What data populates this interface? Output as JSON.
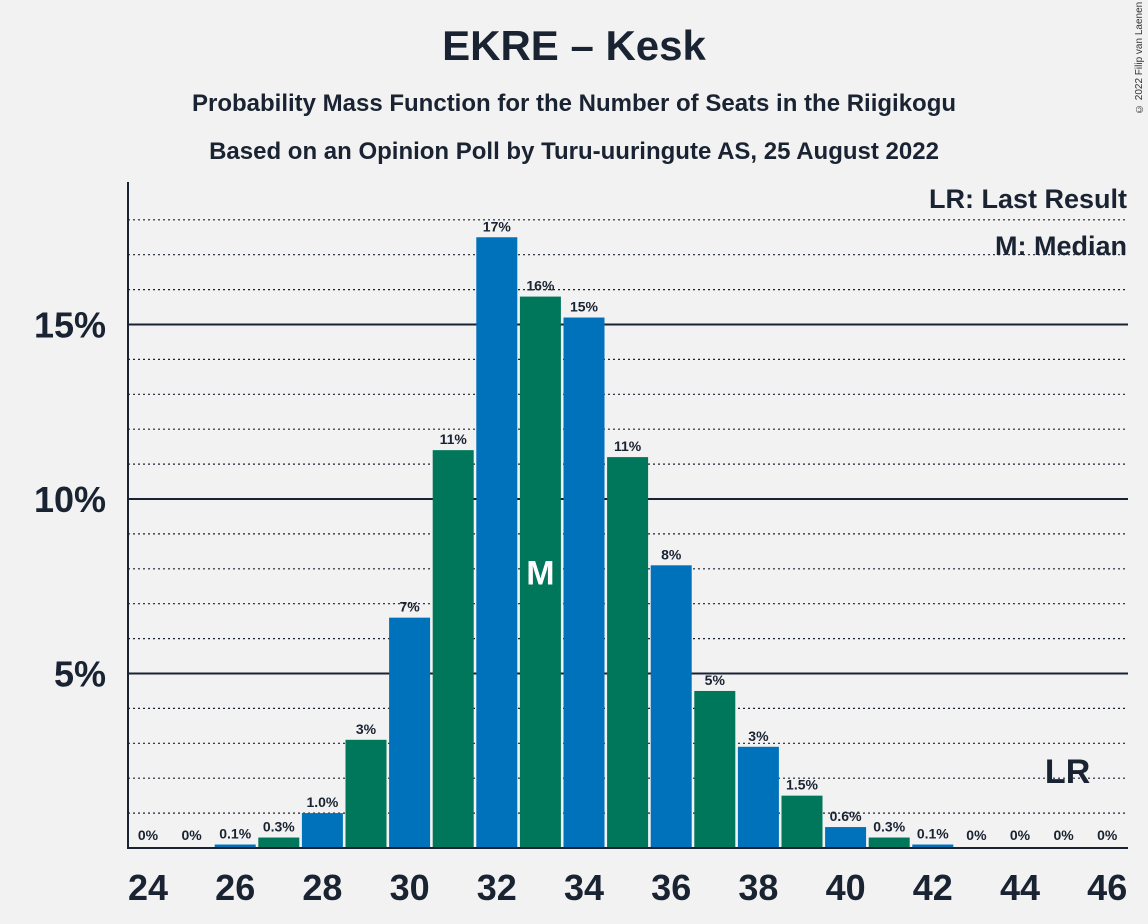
{
  "title": "EKRE – Kesk",
  "subtitle_1": "Probability Mass Function for the Number of Seats in the Riigikogu",
  "subtitle_2": "Based on an Opinion Poll by Turu-uuringute AS, 25 August 2022",
  "copyright": "© 2022 Filip van Laenen",
  "colors": {
    "blue": "#0072bb",
    "green": "#00765a",
    "text": "#1a2332",
    "background": "#f2f2f2"
  },
  "chart_data": {
    "type": "bar",
    "xlabel": "",
    "ylabel": "",
    "x": [
      24,
      25,
      26,
      27,
      28,
      29,
      30,
      31,
      32,
      33,
      34,
      35,
      36,
      37,
      38,
      39,
      40,
      41,
      42,
      43,
      44,
      45,
      46
    ],
    "values": [
      0,
      0,
      0.1,
      0.3,
      1.0,
      3.1,
      6.6,
      11.4,
      17.5,
      15.8,
      15.2,
      11.2,
      8.1,
      4.5,
      2.9,
      1.5,
      0.6,
      0.3,
      0.1,
      0,
      0,
      0,
      0
    ],
    "data_labels": [
      "0%",
      "0%",
      "0.1%",
      "0.3%",
      "1.0%",
      "3%",
      "7%",
      "11%",
      "17%",
      "16%",
      "15%",
      "11%",
      "8%",
      "5%",
      "3%",
      "1.5%",
      "0.6%",
      "0.3%",
      "0.1%",
      "0%",
      "0%",
      "0%",
      "0%"
    ],
    "x_ticks": [
      "24",
      "26",
      "28",
      "30",
      "32",
      "34",
      "36",
      "38",
      "40",
      "42",
      "44",
      "46"
    ],
    "y_ticks": [
      "5%",
      "10%",
      "15%"
    ],
    "ylim": [
      0,
      19
    ],
    "grid": "dotted every 1%, solid every 5%",
    "median": {
      "x": 33,
      "label": "M"
    },
    "last_result": {
      "x": 45,
      "label": "LR"
    },
    "legend": [
      "LR: Last Result",
      "M: Median"
    ],
    "legend_position": "top-right"
  }
}
